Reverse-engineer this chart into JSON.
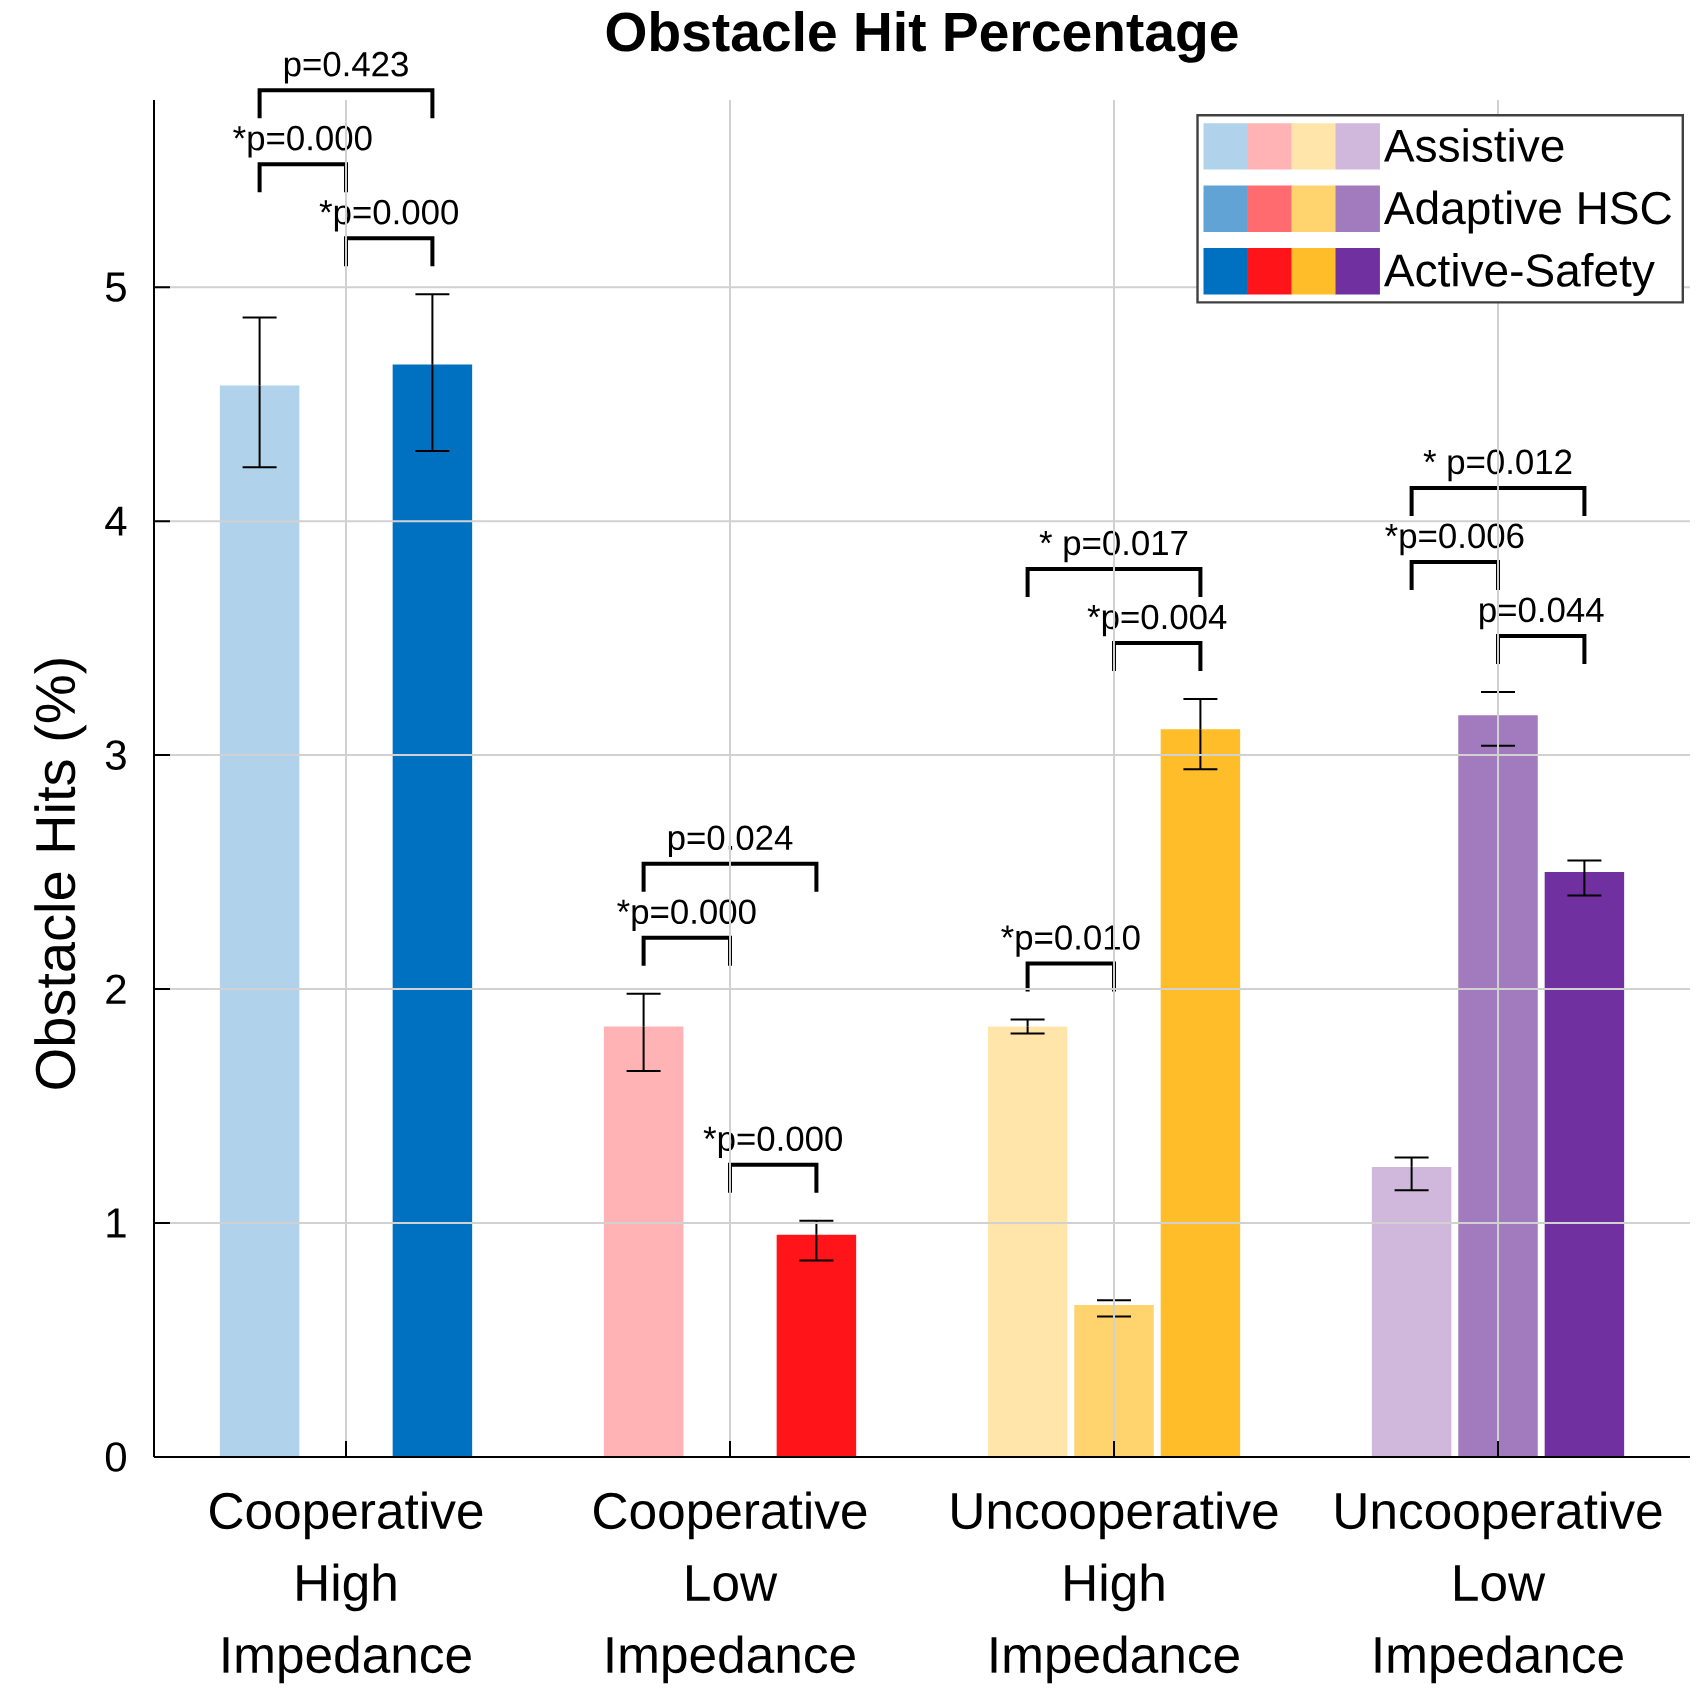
{
  "chart_data": {
    "type": "bar",
    "title": "Obstacle Hit Percentage",
    "ylabel": "Obstacle Hits (%)",
    "categories": [
      "Cooperative High Impedance",
      "Cooperative Low Impedance",
      "Uncooperative High Impedance",
      "Uncooperative Low Impedance"
    ],
    "series": [
      {
        "name": "Assistive",
        "colors": [
          "#b0d3eb",
          "#ffb3b5",
          "#ffe5aa",
          "#cfb8dc"
        ],
        "values": [
          4.58,
          1.84,
          1.84,
          1.24
        ],
        "errors": [
          [
            4.23,
            4.87
          ],
          [
            1.65,
            1.98
          ],
          [
            1.81,
            1.87
          ],
          [
            1.14,
            1.28
          ]
        ]
      },
      {
        "name": "Adaptive HSC",
        "colors": [
          "#62a3d6",
          "#ff6b6e",
          "#ffd36e",
          "#a27bbf"
        ],
        "values": [
          0,
          0,
          0.65,
          3.17
        ],
        "errors": [
          0,
          0,
          [
            0.6,
            0.67
          ],
          [
            3.04,
            3.27
          ]
        ]
      },
      {
        "name": "Active-Safety",
        "colors": [
          "#0070c0",
          "#ff1419",
          "#febd29",
          "#7030a0"
        ],
        "values": [
          4.67,
          0.95,
          3.11,
          2.5
        ],
        "errors": [
          [
            4.3,
            4.97
          ],
          [
            0.84,
            1.01
          ],
          [
            2.94,
            3.24
          ],
          [
            2.4,
            2.55
          ]
        ]
      }
    ],
    "ylim": [
      0,
      5.8
    ],
    "yticks": [
      0,
      1,
      2,
      3,
      4,
      5
    ],
    "grid": true,
    "legend": "top right",
    "annotations": [
      "*p=0.000",
      "*p=0.000",
      "p=0.423",
      "*p=0.000",
      "*p=0.000",
      "p=0.024",
      "*p=0.010",
      "*p=0.004",
      "* p=0.017",
      "*p=0.006",
      "p=0.044",
      "* p=0.012"
    ]
  }
}
